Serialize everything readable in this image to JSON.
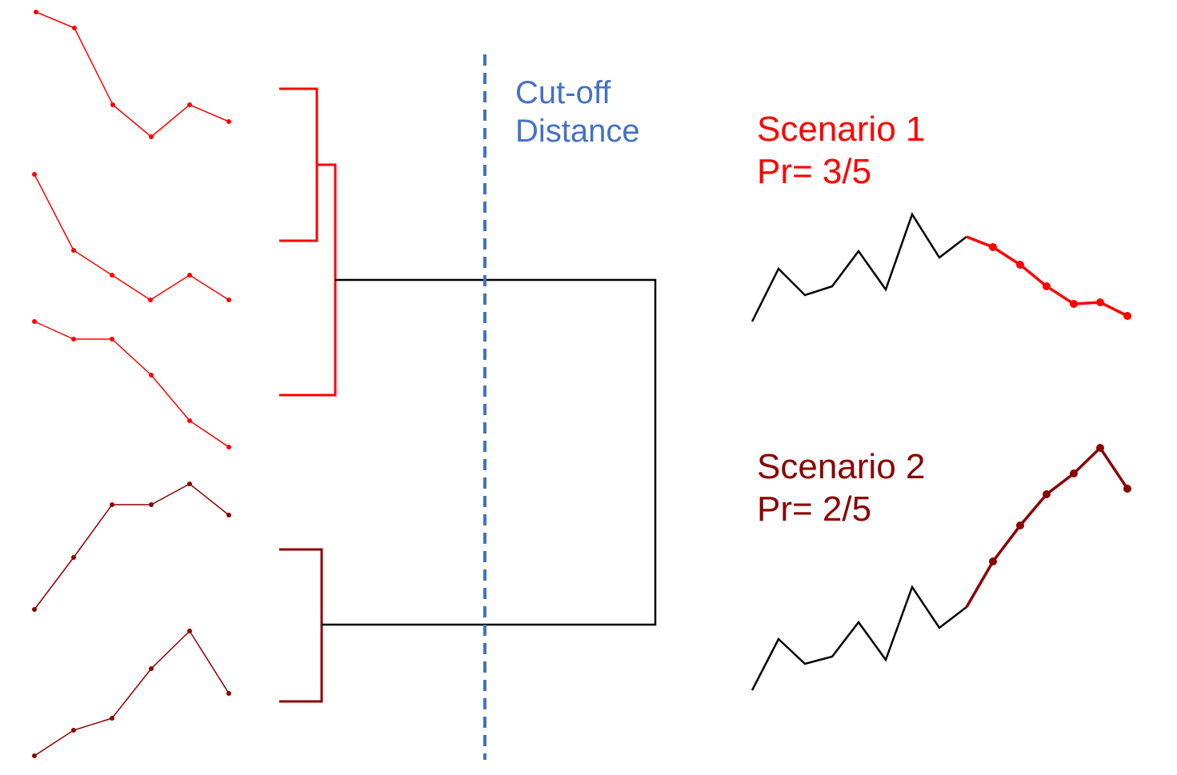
{
  "cutoff": {
    "line1": "Cut-off",
    "line2": "Distance",
    "color": "#4472c4"
  },
  "scenarios": [
    {
      "title": "Scenario 1",
      "prob": "Pr= 3/5",
      "color": "#ff0000"
    },
    {
      "title": "Scenario 2",
      "prob": "Pr= 2/5",
      "color": "#8b0000"
    }
  ],
  "colors": {
    "cluster1": "#ff0000",
    "cluster2": "#8b0000",
    "link": "#000000",
    "history": "#000000"
  }
}
